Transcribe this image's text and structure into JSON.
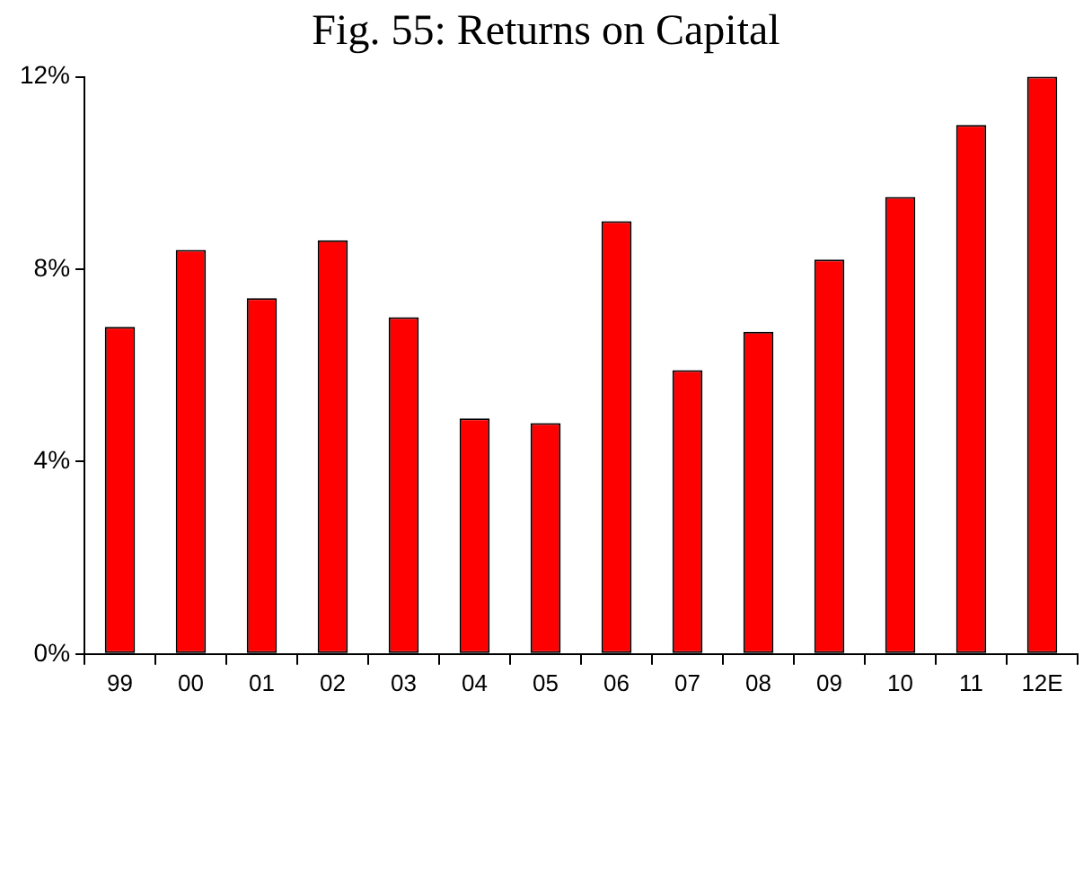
{
  "chart_data": {
    "type": "bar",
    "title": "Fig. 55: Returns on Capital",
    "categories": [
      "99",
      "00",
      "01",
      "02",
      "03",
      "04",
      "05",
      "06",
      "07",
      "08",
      "09",
      "10",
      "11",
      "12E"
    ],
    "values": [
      6.8,
      8.4,
      7.4,
      8.6,
      7.0,
      4.9,
      4.8,
      9.0,
      5.9,
      6.7,
      8.2,
      9.5,
      11.0,
      12.0
    ],
    "color": "#ff0000",
    "ylim": [
      0,
      12
    ],
    "yticks": [
      {
        "value": 0,
        "label": "0%"
      },
      {
        "value": 4,
        "label": "4%"
      },
      {
        "value": 8,
        "label": "8%"
      },
      {
        "value": 12,
        "label": "12%"
      }
    ],
    "grid": false,
    "legend": false
  }
}
